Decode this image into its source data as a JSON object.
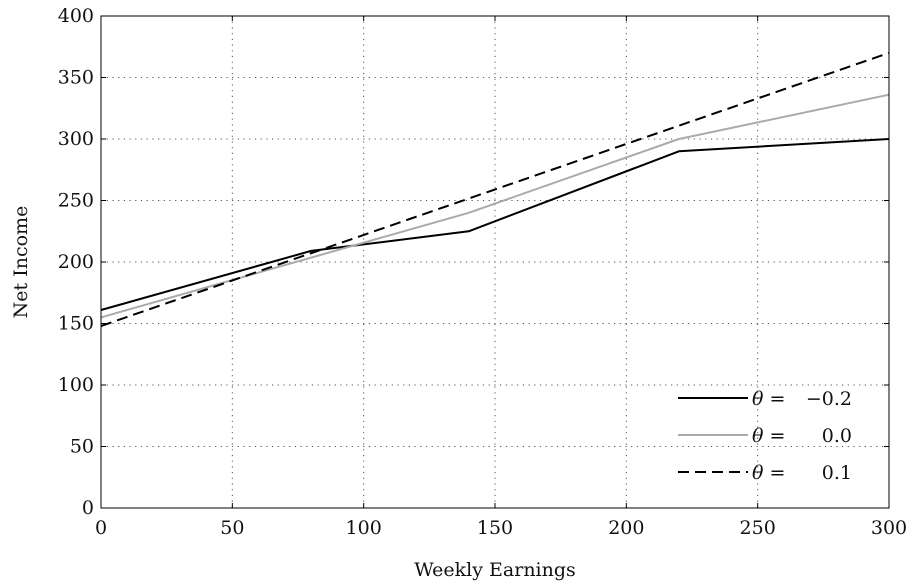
{
  "chart_data": {
    "type": "line",
    "title": "",
    "xlabel": "Weekly Earnings",
    "ylabel": "Net Income",
    "xlim": [
      0,
      300
    ],
    "ylim": [
      0,
      400
    ],
    "xticks": [
      0,
      50,
      100,
      150,
      200,
      250,
      300
    ],
    "yticks": [
      0,
      50,
      100,
      150,
      200,
      250,
      300,
      350,
      400
    ],
    "xtick_labels": [
      "0",
      "50",
      "100",
      "150",
      "200",
      "250",
      "300"
    ],
    "ytick_labels": [
      "0",
      "50",
      "100",
      "150",
      "200",
      "250",
      "300",
      "350",
      "400"
    ],
    "grid": true,
    "grid_style": "dotted",
    "legend_position": "bottom-right",
    "series": [
      {
        "name": "θ = −0.2",
        "legend_symbol": "θ",
        "legend_eq": " = ",
        "legend_value": "−0.2",
        "color": "#000000",
        "dash": "solid",
        "x": [
          0,
          80,
          140,
          220,
          300
        ],
        "y": [
          161,
          209,
          225,
          290,
          300
        ]
      },
      {
        "name": "θ = 0.0",
        "legend_symbol": "θ",
        "legend_eq": " = ",
        "legend_value": "0.0",
        "color": "#aaaaaa",
        "dash": "solid",
        "x": [
          0,
          140,
          220,
          300
        ],
        "y": [
          155,
          240,
          300,
          336
        ]
      },
      {
        "name": "θ = 0.1",
        "legend_symbol": "θ",
        "legend_eq": " = ",
        "legend_value": "0.1",
        "color": "#000000",
        "dash": "dashed",
        "x": [
          0,
          300
        ],
        "y": [
          148,
          370
        ]
      }
    ]
  }
}
